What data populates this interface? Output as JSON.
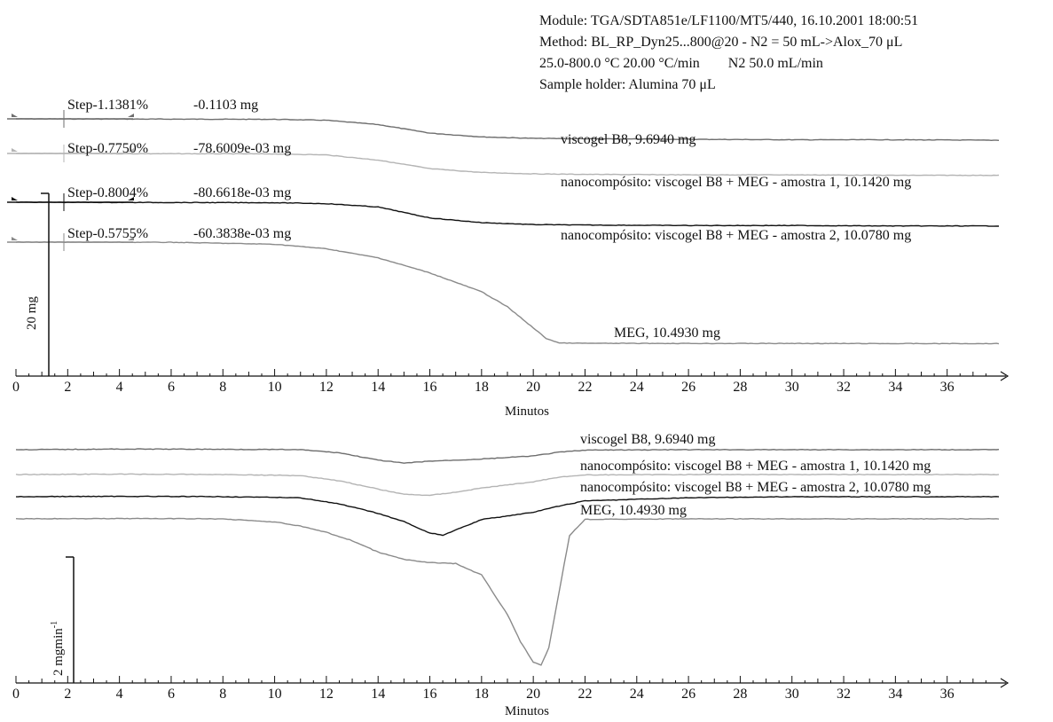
{
  "header": {
    "module": "Module: TGA/SDTA851e/LF1100/MT5/440, 16.10.2001 18:00:51",
    "method": "Method: BL_RP_Dyn25...800@20 - N2 = 50 mL->Alox_70 μL",
    "conditions": "25.0-800.0 °C 20.00 °C/min        N2 50.0 mL/min",
    "holder": "Sample holder: Alumina 70 μL"
  },
  "chart_data": [
    {
      "type": "line",
      "xlabel": "Minutos",
      "xlim": [
        0,
        38
      ],
      "xticks": [
        "0",
        "2",
        "4",
        "6",
        "8",
        "10",
        "12",
        "14",
        "16",
        "18",
        "20",
        "22",
        "24",
        "26",
        "28",
        "30",
        "32",
        "34",
        "36"
      ],
      "scale_bar": "20 mg",
      "grid": false,
      "legend": "inline labels",
      "steps": [
        {
          "label": "Step",
          "percent": "-1.1381%",
          "mass": "-0.1103 mg"
        },
        {
          "label": "Step",
          "percent": "-0.7750%",
          "mass": "-78.6009e-03 mg"
        },
        {
          "label": "Step",
          "percent": "-0.8004%",
          "mass": "-80.6618e-03 mg"
        },
        {
          "label": "Step",
          "percent": "-0.5755%",
          "mass": "-60.3838e-03 mg"
        }
      ],
      "series": [
        {
          "name": "viscogel B8, 9.6940 mg",
          "color": "#6e6e6e",
          "x": [
            0,
            10,
            12,
            14,
            16,
            18,
            20,
            22,
            26,
            30,
            34,
            38
          ],
          "y": [
            10.0,
            9.99,
            9.97,
            9.88,
            9.7,
            9.62,
            9.59,
            9.58,
            9.57,
            9.56,
            9.56,
            9.55
          ]
        },
        {
          "name": "nanocompósito: viscogel B8 + MEG -  amostra 1, 10.1420 mg",
          "color": "#b4b4b4",
          "x": [
            0,
            10,
            12,
            14,
            16,
            18,
            20,
            22,
            26,
            30,
            34,
            38
          ],
          "y": [
            10.14,
            10.13,
            10.11,
            10.0,
            9.82,
            9.74,
            9.71,
            9.7,
            9.69,
            9.69,
            9.68,
            9.68
          ]
        },
        {
          "name": "nanocompósito: viscogel B8 + MEG - amostra 2, 10.0780 mg",
          "color": "#111111",
          "x": [
            0,
            10,
            12,
            14,
            16,
            18,
            20,
            22,
            26,
            30,
            34,
            38
          ],
          "y": [
            10.08,
            10.07,
            10.05,
            9.98,
            9.75,
            9.65,
            9.61,
            9.6,
            9.59,
            9.59,
            9.58,
            9.58
          ]
        },
        {
          "name": "MEG, 10.4930 mg",
          "color": "#8a8a8a",
          "x": [
            0,
            6,
            10,
            12,
            14,
            16,
            18,
            19,
            20,
            20.5,
            21,
            22,
            26,
            30,
            34,
            38
          ],
          "y": [
            10.49,
            10.48,
            10.35,
            10.05,
            9.45,
            8.45,
            7.2,
            6.2,
            4.8,
            4.1,
            3.8,
            3.78,
            3.77,
            3.77,
            3.76,
            3.76
          ]
        }
      ]
    },
    {
      "type": "line",
      "xlabel": "Minutos",
      "xlim": [
        0,
        38
      ],
      "xticks": [
        "0",
        "2",
        "4",
        "6",
        "8",
        "10",
        "12",
        "14",
        "16",
        "18",
        "20",
        "22",
        "24",
        "26",
        "28",
        "30",
        "32",
        "34",
        "36"
      ],
      "scale_bar": "2 mgmin",
      "scale_bar_sup": "-1",
      "grid": false,
      "legend": "inline labels",
      "series": [
        {
          "name": "viscogel B8, 9.6940 mg",
          "color": "#6e6e6e",
          "x": [
            0,
            4,
            8,
            11,
            12.5,
            14,
            15,
            16,
            18,
            20,
            21,
            22,
            26,
            30,
            34,
            38
          ],
          "y": [
            0,
            0.03,
            0.02,
            0,
            -0.15,
            -0.5,
            -0.65,
            -0.55,
            -0.45,
            -0.3,
            -0.12,
            -0.02,
            0,
            0,
            0,
            0
          ]
        },
        {
          "name": "nanocompósito: viscogel B8 + MEG -  amostra 1, 10.1420 mg",
          "color": "#b4b4b4",
          "x": [
            0,
            4,
            8,
            11,
            12.5,
            14,
            15,
            16,
            17,
            18,
            20,
            21,
            22,
            26,
            30,
            34,
            38
          ],
          "y": [
            0,
            0.02,
            0,
            -0.05,
            -0.3,
            -0.7,
            -0.95,
            -1.0,
            -0.85,
            -0.65,
            -0.35,
            -0.12,
            -0.02,
            0,
            0,
            0,
            0
          ]
        },
        {
          "name": "nanocompósito: viscogel B8 + MEG - amostra 2, 10.0780 mg",
          "color": "#111111",
          "x": [
            0,
            4,
            8,
            11,
            12.5,
            14,
            15,
            16,
            16.5,
            17,
            18,
            20,
            21,
            22,
            26,
            30,
            34,
            38
          ],
          "y": [
            0,
            0.02,
            0,
            -0.05,
            -0.35,
            -0.8,
            -1.2,
            -1.75,
            -1.85,
            -1.6,
            -1.1,
            -0.75,
            -0.45,
            -0.2,
            -0.05,
            0,
            0,
            0
          ]
        },
        {
          "name": "MEG, 10.4930 mg",
          "color": "#8a8a8a",
          "x": [
            0,
            4,
            8,
            10,
            11,
            12,
            13,
            14,
            15,
            16,
            17,
            18,
            19,
            19.5,
            20,
            20.3,
            20.6,
            21,
            21.4,
            22,
            26,
            30,
            34,
            38
          ],
          "y": [
            0,
            0.02,
            0,
            -0.15,
            -0.35,
            -0.65,
            -1.05,
            -1.6,
            -1.95,
            -2.1,
            -2.15,
            -2.7,
            -4.6,
            -5.9,
            -6.9,
            -7.05,
            -6.2,
            -3.5,
            -0.8,
            -0.02,
            0,
            0,
            0,
            0
          ]
        }
      ]
    }
  ]
}
